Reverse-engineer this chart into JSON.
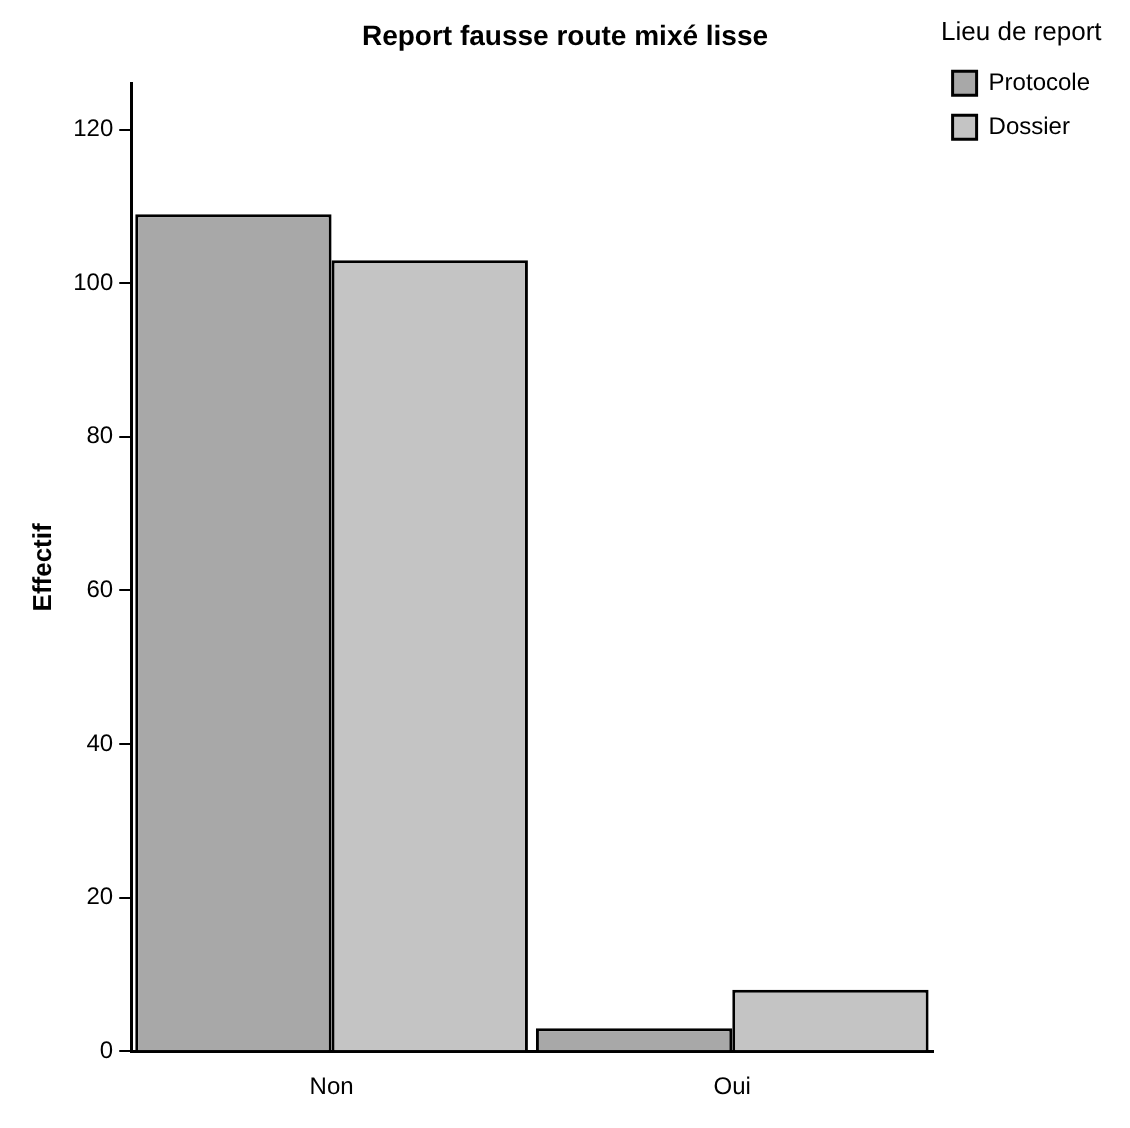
{
  "chart_data": {
    "type": "bar",
    "title": "Report fausse route mixé lisse",
    "ylabel": "Effectif",
    "legend_title": "Lieu de report",
    "categories": [
      "Non",
      "Oui"
    ],
    "series": [
      {
        "name": "Protocole",
        "color": "#a8a8a8",
        "values": [
          109,
          3
        ]
      },
      {
        "name": "Dossier",
        "color": "#c4c4c4",
        "values": [
          103,
          8
        ]
      }
    ],
    "ylim": [
      0,
      126
    ],
    "yticks": [
      0,
      20,
      40,
      60,
      80,
      100,
      120
    ],
    "grid": false,
    "legend": "top right"
  }
}
